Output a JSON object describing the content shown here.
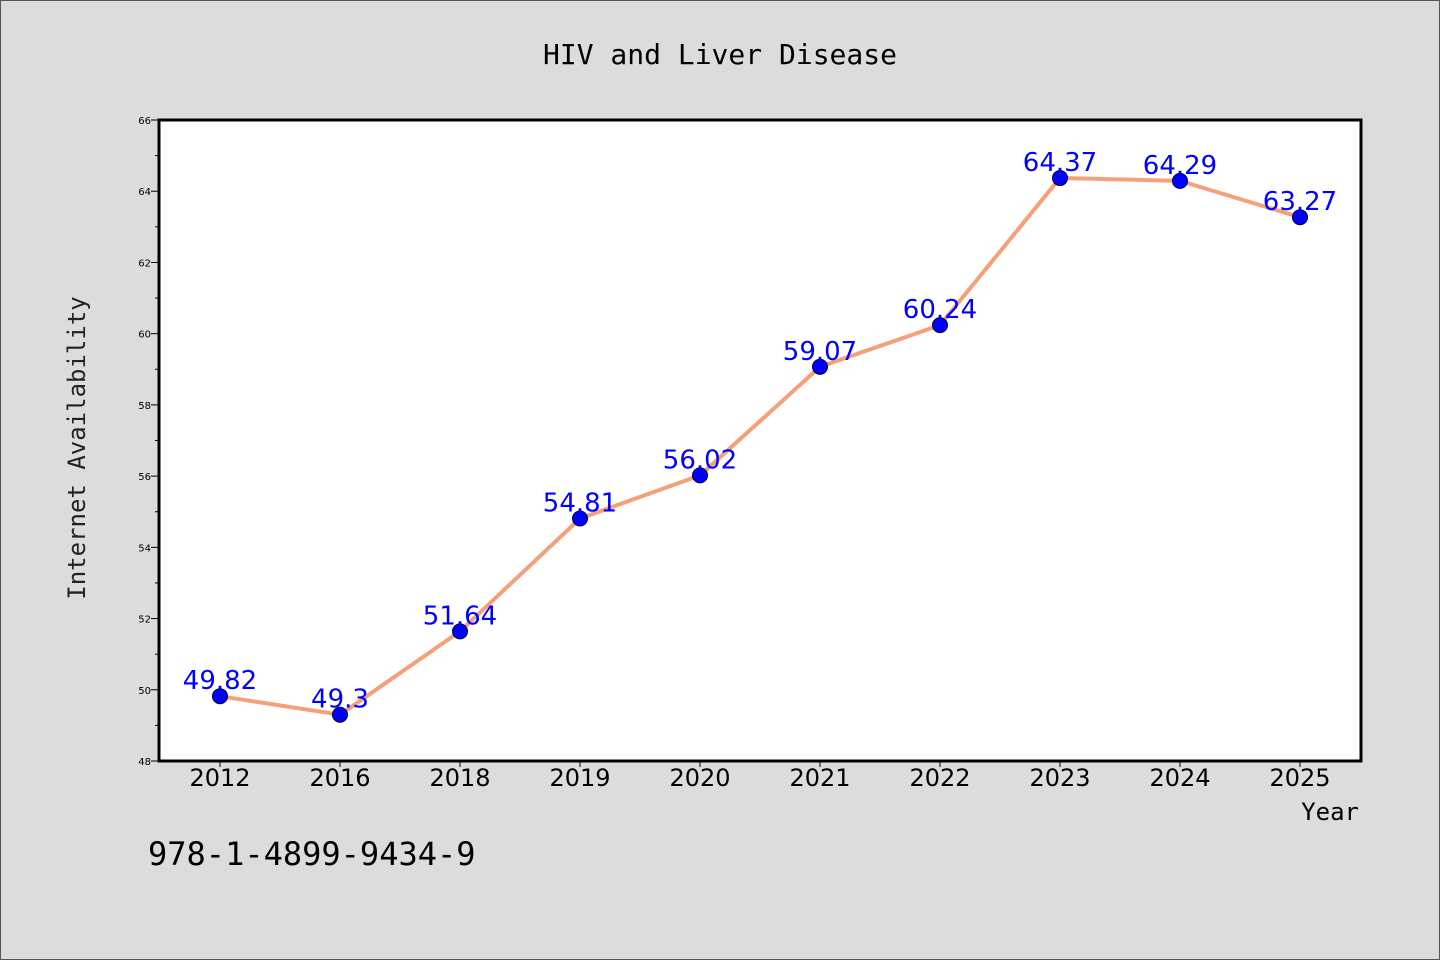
{
  "chart_data": {
    "type": "line",
    "title": "HIV and Liver Disease",
    "xlabel": "Year",
    "ylabel": "Internet Availability",
    "categories": [
      "2012",
      "2016",
      "2018",
      "2019",
      "2020",
      "2021",
      "2022",
      "2023",
      "2024",
      "2025"
    ],
    "series": [
      {
        "values": [
          49.82,
          49.3,
          51.64,
          54.81,
          56.02,
          59.07,
          60.24,
          64.37,
          64.29,
          63.27
        ],
        "labels": [
          "49.82",
          "49.3",
          "51.64",
          "54.81",
          "56.02",
          "59.07",
          "60.24",
          "64.37",
          "64.29",
          "63.27"
        ],
        "line_color": "#f4a07a",
        "marker_color": "#0000ff"
      }
    ],
    "ylim": [
      48,
      66
    ],
    "yticks": [
      48,
      50,
      52,
      54,
      56,
      58,
      60,
      62,
      64,
      66
    ],
    "grid": false,
    "legend": "none"
  },
  "footnote": "978-1-4899-9434-9"
}
